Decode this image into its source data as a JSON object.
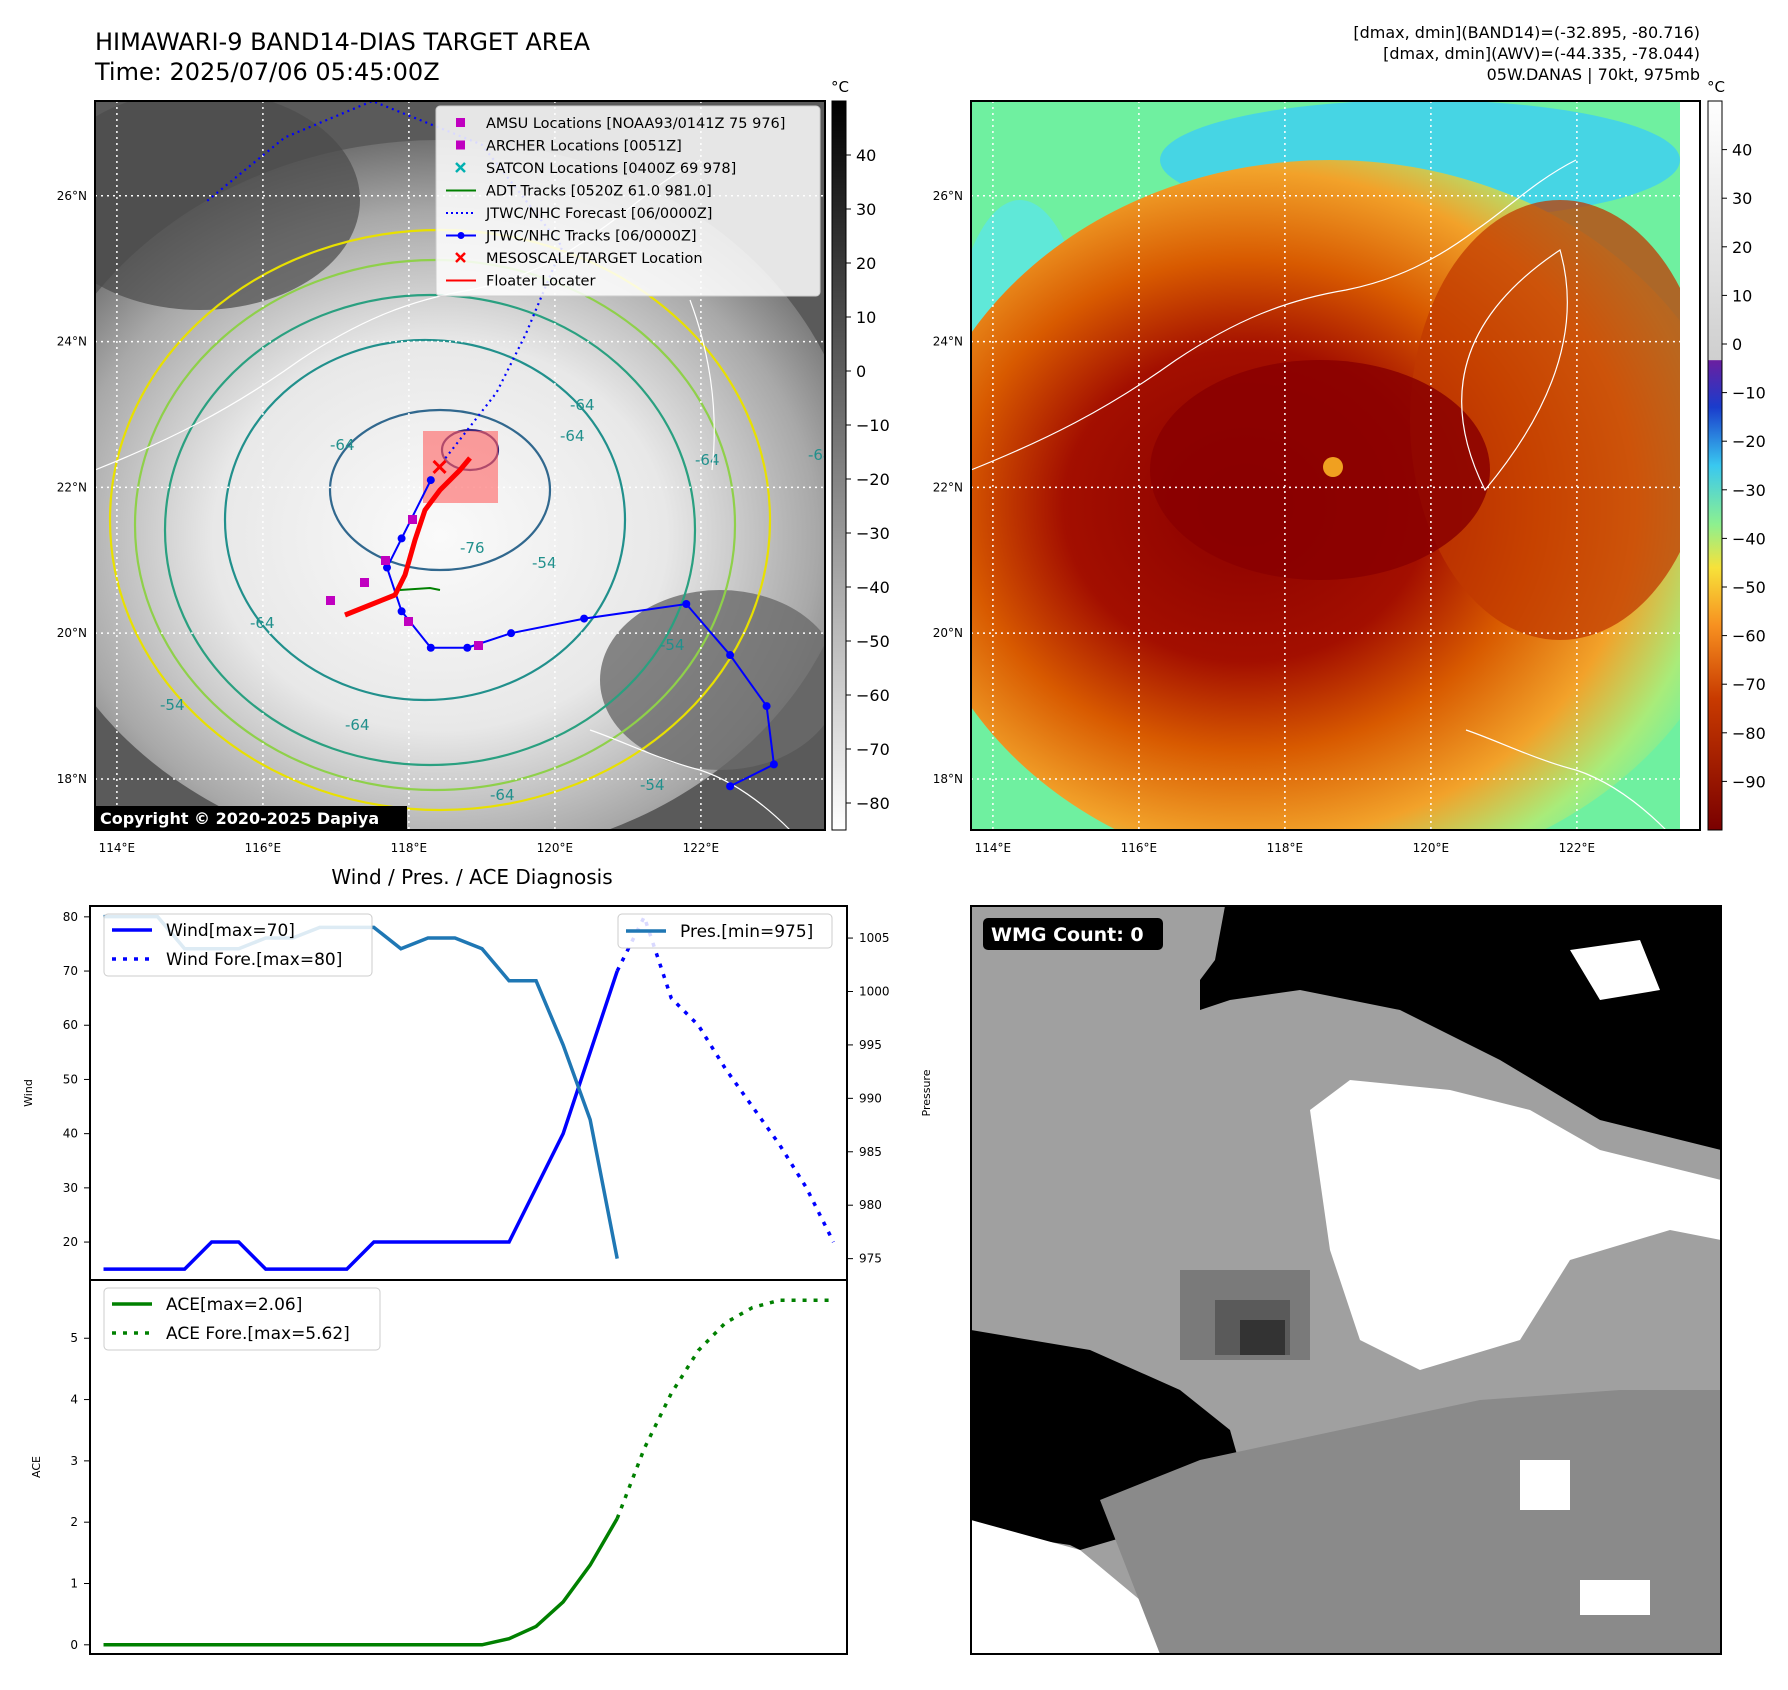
{
  "header": {
    "title_line1": "HIMAWARI-9 BAND14-DIAS TARGET AREA",
    "title_line2": "Time: 2025/07/06 05:45:00Z",
    "info_line1": "[dmax, dmin](BAND14)=(-32.895, -80.716)",
    "info_line2": "[dmax, dmin](AWV)=(-44.335, -78.044)",
    "info_line3": "05W.DANAS | 70kt, 975mb"
  },
  "map": {
    "lat_ticks": [
      "26°N",
      "24°N",
      "22°N",
      "20°N",
      "18°N"
    ],
    "lat_values": [
      26,
      24,
      22,
      20,
      18
    ],
    "lon_ticks": [
      "114°E",
      "116°E",
      "118°E",
      "120°E",
      "122°E"
    ],
    "lon_values": [
      114,
      116,
      118,
      120,
      122
    ],
    "lat_range": [
      17.3,
      27.3
    ],
    "lon_range": [
      113.7,
      123.7
    ],
    "contour_labels": [
      "-64",
      "-76",
      "-64",
      "-64",
      "-64",
      "-54",
      "-64",
      "-54",
      "-54",
      "-64",
      "-54",
      "-64",
      "-64"
    ],
    "copyright": "Copyright © 2020-2025 Dapiya",
    "legend": [
      {
        "label": "AMSU Locations [NOAA93/0141Z 75 976]",
        "marker": "square",
        "color": "#c000c0"
      },
      {
        "label": "ARCHER Locations [0051Z]",
        "marker": "square",
        "color": "#c000c0"
      },
      {
        "label": "SATCON Locations [0400Z 69 978]",
        "marker": "x",
        "color": "#00b0b0"
      },
      {
        "label": "ADT Tracks [0520Z 61.0 981.0]",
        "marker": "line",
        "color": "#008000"
      },
      {
        "label": "JTWC/NHC Forecast [06/0000Z]",
        "marker": "dotted",
        "color": "#0000ff"
      },
      {
        "label": "JTWC/NHC Tracks [06/0000Z]",
        "marker": "line-dot",
        "color": "#0000ff"
      },
      {
        "label": "MESOSCALE/TARGET Location",
        "marker": "x",
        "color": "#ff0000"
      },
      {
        "label": "Floater Locater",
        "marker": "line",
        "color": "#ff0000"
      }
    ],
    "track_points": [
      [
        122.4,
        17.9
      ],
      [
        123.0,
        18.2
      ],
      [
        122.9,
        19.0
      ],
      [
        122.4,
        19.7
      ],
      [
        121.8,
        20.4
      ],
      [
        120.4,
        20.2
      ],
      [
        119.4,
        20.0
      ],
      [
        118.8,
        19.8
      ],
      [
        118.3,
        19.8
      ],
      [
        117.9,
        20.3
      ],
      [
        117.7,
        20.9
      ],
      [
        117.9,
        21.3
      ],
      [
        118.3,
        22.1
      ]
    ],
    "forecast_points": [
      [
        118.5,
        22.4
      ],
      [
        119.2,
        23.3
      ],
      [
        119.6,
        24.1
      ],
      [
        120.1,
        25.3
      ],
      [
        119.0,
        26.7
      ],
      [
        117.5,
        27.3
      ],
      [
        116.3,
        26.8
      ],
      [
        115.2,
        25.9
      ]
    ],
    "target": [
      118.42,
      22.28
    ],
    "colorbar": {
      "label": "°C",
      "ticks": [
        "40",
        "30",
        "20",
        "10",
        "0",
        "−10",
        "−20",
        "−30",
        "−40",
        "−50",
        "−60",
        "−70",
        "−80"
      ],
      "values": [
        40,
        30,
        20,
        10,
        0,
        -10,
        -20,
        -30,
        -40,
        -50,
        -60,
        -70,
        -80
      ],
      "range": [
        -85,
        50
      ]
    }
  },
  "map2": {
    "lat_ticks": [
      "26°N",
      "24°N",
      "22°N",
      "20°N",
      "18°N"
    ],
    "lon_ticks": [
      "114°E",
      "116°E",
      "118°E",
      "120°E",
      "122°E"
    ],
    "colorbar": {
      "label": "°C",
      "ticks": [
        "40",
        "30",
        "20",
        "10",
        "0",
        "−10",
        "−20",
        "−30",
        "−40",
        "−50",
        "−60",
        "−70",
        "−80",
        "−90"
      ],
      "values": [
        40,
        30,
        20,
        10,
        0,
        -10,
        -20,
        -30,
        -40,
        -50,
        -60,
        -70,
        -80,
        -90
      ],
      "range": [
        -100,
        50
      ]
    }
  },
  "chart_data": [
    {
      "type": "line",
      "title": "Wind / Pres. / ACE Diagnosis",
      "ylabel": "Wind",
      "ylabel_right": "Pressure",
      "ylim": [
        13,
        82
      ],
      "ylim_right": [
        973,
        1008
      ],
      "xlim": [
        -0.5,
        27.5
      ],
      "yticks": [
        20,
        30,
        40,
        50,
        60,
        70,
        80
      ],
      "yticks_right": [
        975,
        980,
        985,
        990,
        995,
        1000,
        1005
      ],
      "series": [
        {
          "name": "Wind[max=70]",
          "style": "solid",
          "color": "#0000ff",
          "x": [
            0,
            1,
            2,
            3,
            4,
            5,
            6,
            7,
            8,
            9,
            10,
            11,
            12,
            13,
            14,
            15,
            16,
            17,
            18,
            19
          ],
          "values": [
            15,
            15,
            15,
            15,
            20,
            20,
            15,
            15,
            15,
            15,
            20,
            20,
            20,
            20,
            20,
            20,
            30,
            40,
            55,
            70
          ]
        },
        {
          "name": "Wind Fore.[max=80]",
          "style": "dotted",
          "color": "#0000ff",
          "x": [
            19,
            20,
            21,
            22,
            23,
            24,
            25,
            26,
            27
          ],
          "values": [
            70,
            80,
            65,
            60,
            52,
            45,
            38,
            30,
            20
          ]
        },
        {
          "name": "Pres.[min=975]",
          "style": "solid",
          "color": "#1f77b4",
          "axis": "right",
          "x": [
            0,
            1,
            2,
            3,
            4,
            5,
            6,
            7,
            8,
            9,
            10,
            11,
            12,
            13,
            14,
            15,
            16,
            17,
            18,
            19
          ],
          "values": [
            1007,
            1007,
            1007,
            1004,
            1004,
            1004,
            1005,
            1005,
            1006,
            1006,
            1006,
            1004,
            1005,
            1005,
            1004,
            1001,
            1001,
            995,
            988,
            975
          ]
        }
      ]
    },
    {
      "type": "line",
      "ylabel": "ACE",
      "ylim": [
        -0.15,
        5.95
      ],
      "xlim": [
        -0.5,
        27.5
      ],
      "yticks": [
        0,
        1,
        2,
        3,
        4,
        5
      ],
      "series": [
        {
          "name": "ACE[max=2.06]",
          "style": "solid",
          "color": "#008000",
          "x": [
            0,
            2,
            4,
            6,
            8,
            10,
            12,
            14,
            15,
            16,
            17,
            18,
            19
          ],
          "values": [
            0,
            0,
            0,
            0,
            0,
            0,
            0,
            0,
            0.1,
            0.3,
            0.7,
            1.3,
            2.06
          ]
        },
        {
          "name": "ACE Fore.[max=5.62]",
          "style": "dotted",
          "color": "#008000",
          "x": [
            19,
            20,
            21,
            22,
            23,
            24,
            25,
            26,
            27
          ],
          "values": [
            2.06,
            3.2,
            4.1,
            4.8,
            5.25,
            5.5,
            5.62,
            5.62,
            5.62
          ]
        }
      ]
    },
    {
      "type": "heatmap",
      "title": "WMG Count: 0"
    }
  ]
}
